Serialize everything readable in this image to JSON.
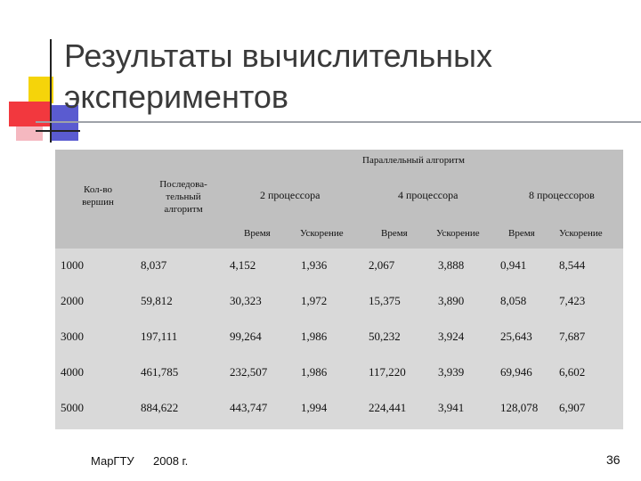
{
  "title": "Результаты вычислительных экспериментов",
  "table": {
    "group_header": "Параллельный алгоритм",
    "col_vertices": "Кол-во вершин",
    "col_sequential": "Последова-тельный алгоритм",
    "groups": [
      "2 процессора",
      "4 процессора",
      "8 процессоров"
    ],
    "subheaders": [
      "Время",
      "Ускорение",
      "Время",
      "Ускорение",
      "Время",
      "Ускорение"
    ],
    "rows": [
      [
        "1000",
        "8,037",
        "4,152",
        "1,936",
        "2,067",
        "3,888",
        "0,941",
        "8,544"
      ],
      [
        "2000",
        "59,812",
        "30,323",
        "1,972",
        "15,375",
        "3,890",
        "8,058",
        "7,423"
      ],
      [
        "3000",
        "197,111",
        "99,264",
        "1,986",
        "50,232",
        "3,924",
        "25,643",
        "7,687"
      ],
      [
        "4000",
        "461,785",
        "232,507",
        "1,986",
        "117,220",
        "3,939",
        "69,946",
        "6,602"
      ],
      [
        "5000",
        "884,622",
        "443,747",
        "1,994",
        "224,441",
        "3,941",
        "128,078",
        "6,907"
      ]
    ]
  },
  "footer": {
    "org": "МарГТУ",
    "year": "2008 г.",
    "page": "36"
  },
  "colors": {
    "header_bg": "#c0c0c0",
    "body_bg": "#d9d9d9",
    "accent_yellow": "#f5d40a",
    "accent_red": "#f2383e",
    "accent_blue": "#5a5bd0"
  }
}
